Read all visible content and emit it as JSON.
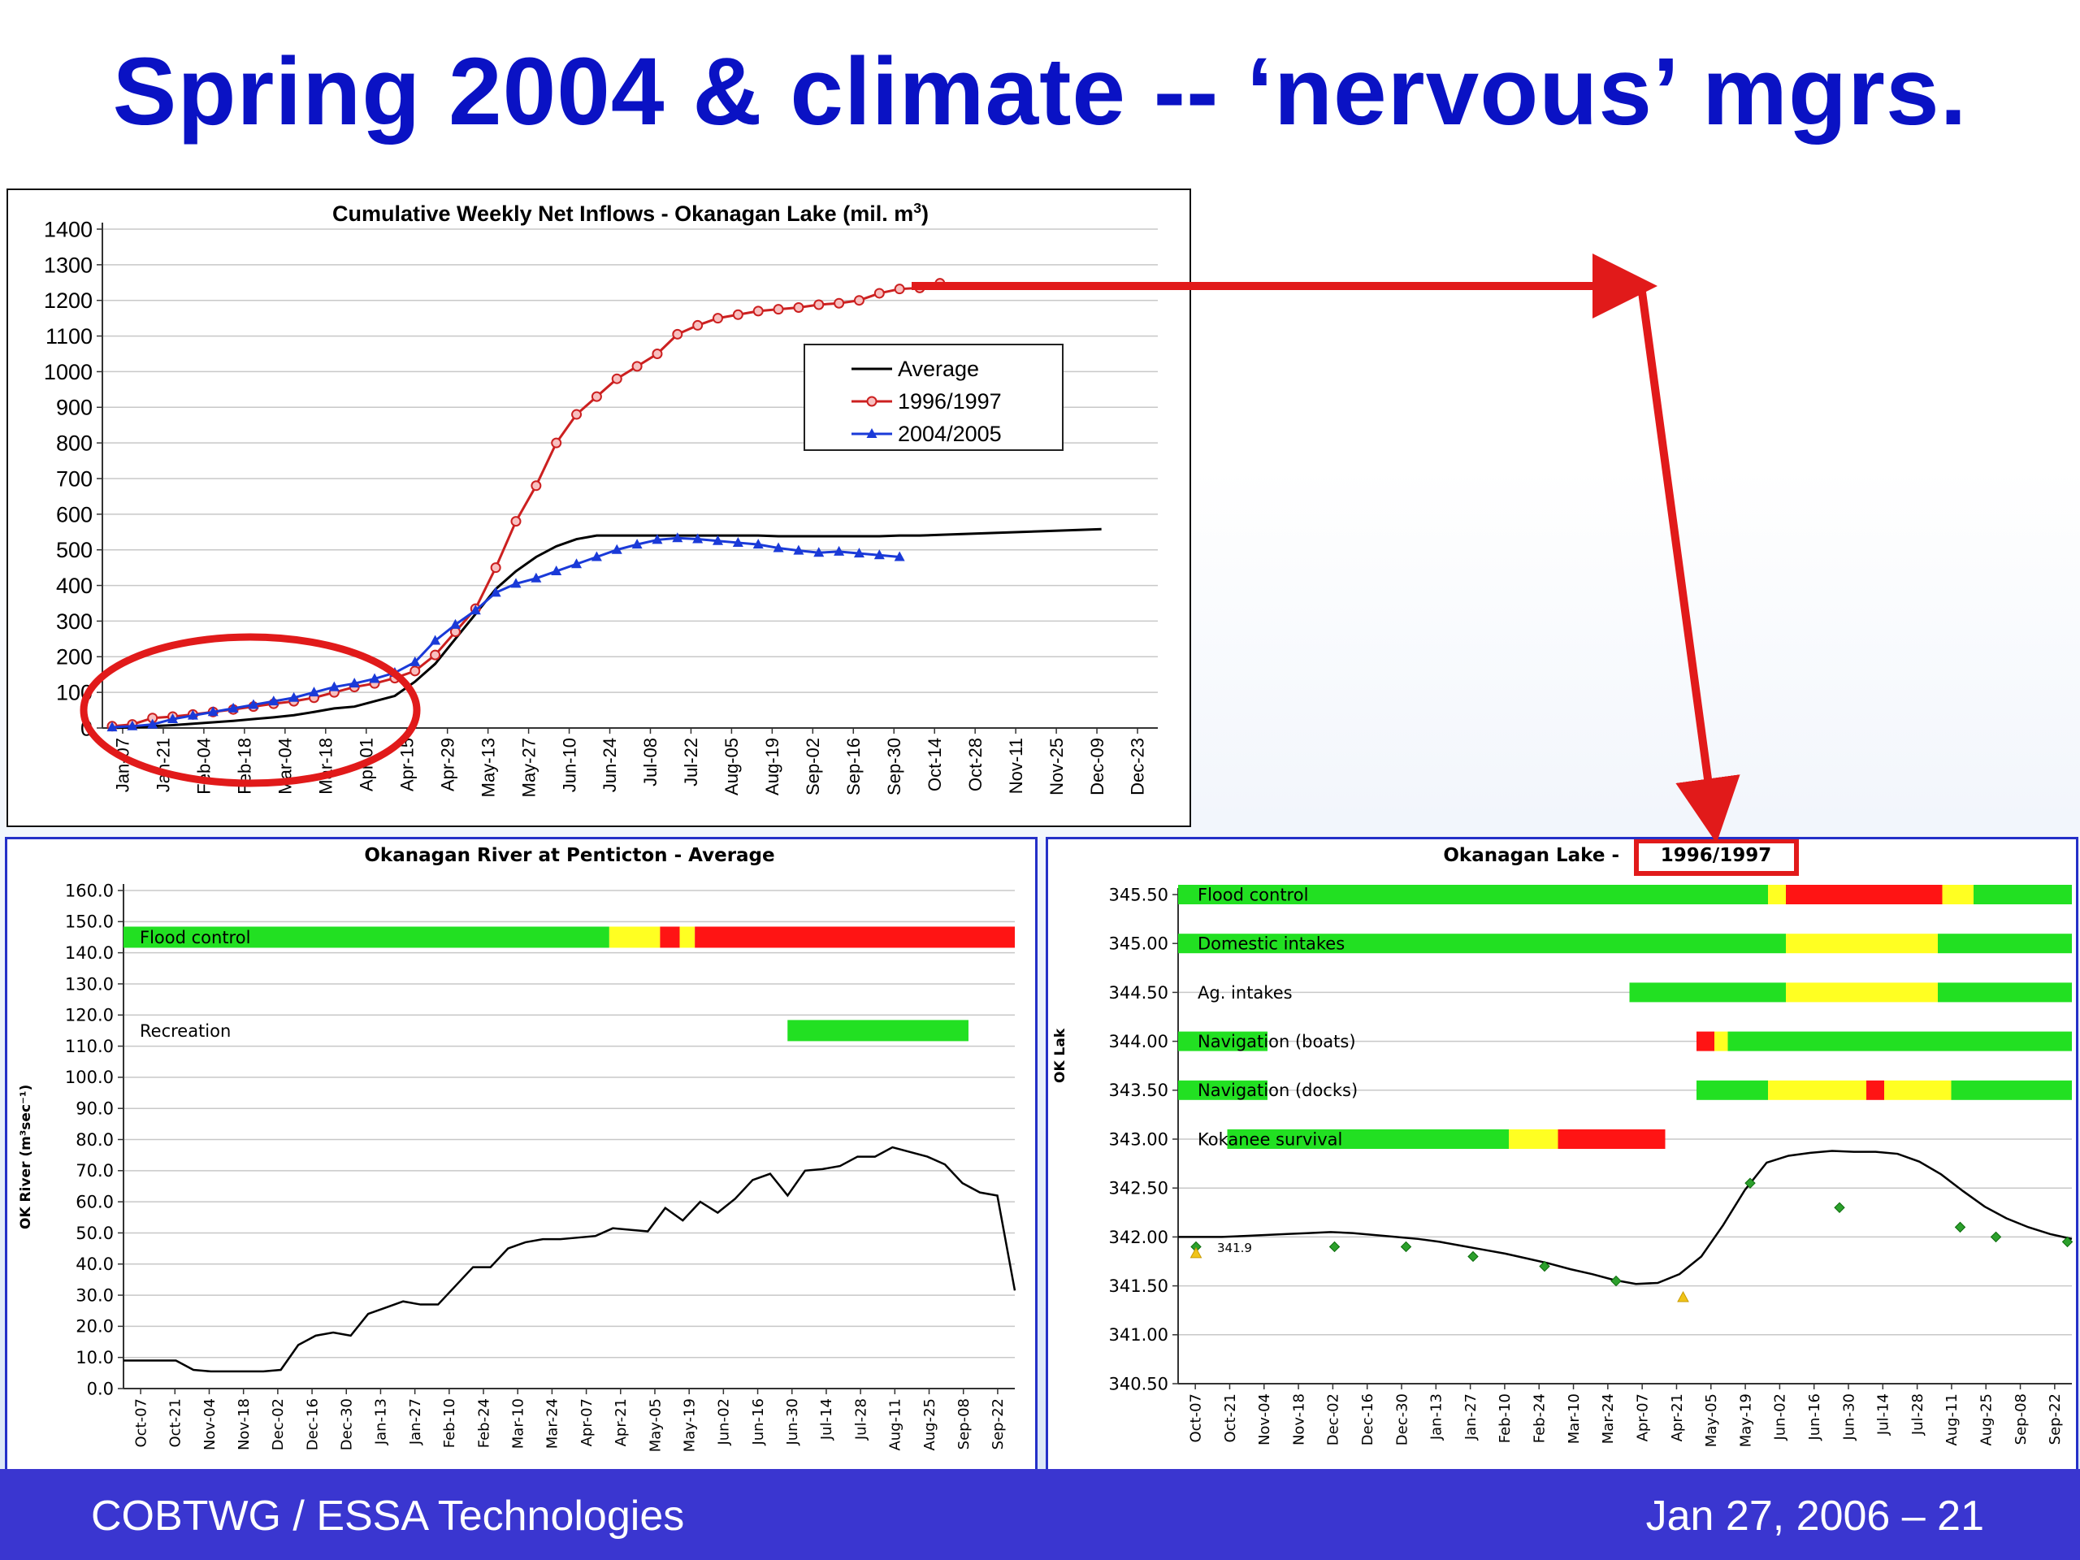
{
  "slide": {
    "title": "Spring 2004 & climate -- ‘nervous’ mgrs.",
    "footer_left": "COBTWG / ESSA Technologies",
    "footer_right": "Jan 27, 2006 – 21",
    "colors": {
      "title": "#0a12c4",
      "footer_bg": "#3a36d0",
      "highlight": "#e11a1a"
    }
  },
  "chart_data": [
    {
      "type": "line",
      "title": "Cumulative Weekly Net Inflows - Okanagan Lake (mil. m",
      "title_sup": "3",
      "title_close": ")",
      "xlabel": "",
      "ylabel": "",
      "ylim": [
        0,
        1400
      ],
      "yticks": [
        "0",
        "100",
        "200",
        "300",
        "400",
        "500",
        "600",
        "700",
        "800",
        "900",
        "1000",
        "1100",
        "1200",
        "1300",
        "1400"
      ],
      "x_labels": [
        "Jan-07",
        "Jan-21",
        "Feb-04",
        "Feb-18",
        "Mar-04",
        "Mar-18",
        "Apr-01",
        "Apr-15",
        "Apr-29",
        "May-13",
        "May-27",
        "Jun-10",
        "Jun-24",
        "Jul-08",
        "Jul-22",
        "Aug-05",
        "Aug-19",
        "Sep-02",
        "Sep-16",
        "Sep-30",
        "Oct-14",
        "Oct-28",
        "Nov-11",
        "Nov-25",
        "Dec-09",
        "Dec-23"
      ],
      "legend": [
        "Average",
        "1996/1997",
        "2004/2005"
      ],
      "legend_position": "right",
      "grid": true,
      "series": [
        {
          "name": "Average",
          "color": "#000000",
          "marker": "none",
          "values": [
            0,
            2,
            5,
            8,
            12,
            16,
            20,
            25,
            30,
            36,
            45,
            55,
            60,
            75,
            90,
            130,
            180,
            250,
            320,
            390,
            440,
            480,
            510,
            530,
            540,
            540,
            540,
            540,
            540,
            540,
            540,
            540,
            540,
            538,
            538,
            538,
            538,
            538,
            538,
            540,
            540,
            542,
            544,
            546,
            548,
            550,
            552,
            554,
            556,
            558
          ]
        },
        {
          "name": "1996/1997",
          "color": "#cc2020",
          "marker": "circle",
          "values": [
            5,
            10,
            28,
            32,
            38,
            45,
            52,
            60,
            68,
            75,
            85,
            100,
            115,
            125,
            140,
            160,
            205,
            270,
            335,
            450,
            580,
            680,
            800,
            880,
            930,
            980,
            1015,
            1050,
            1105,
            1130,
            1150,
            1160,
            1170,
            1175,
            1180,
            1188,
            1192,
            1200,
            1220,
            1232,
            1235,
            1248
          ]
        },
        {
          "name": "2004/2005",
          "color": "#1a3ad8",
          "marker": "triangle",
          "values": [
            2,
            5,
            10,
            25,
            35,
            45,
            55,
            65,
            75,
            85,
            100,
            115,
            125,
            138,
            155,
            185,
            245,
            290,
            330,
            380,
            405,
            420,
            440,
            460,
            480,
            500,
            515,
            528,
            533,
            530,
            525,
            520,
            515,
            505,
            498,
            492,
            495,
            490,
            485,
            480
          ]
        }
      ],
      "annotation": "red ellipse around Jan–Apr period"
    },
    {
      "type": "line",
      "title": "Okanagan River at Penticton - Average",
      "xlabel": "",
      "ylabel": "OK River (m³sec⁻¹)",
      "ylim": [
        0,
        160
      ],
      "yticks": [
        "0.0",
        "10.0",
        "20.0",
        "30.0",
        "40.0",
        "50.0",
        "60.0",
        "70.0",
        "80.0",
        "90.0",
        "100.0",
        "110.0",
        "120.0",
        "130.0",
        "140.0",
        "150.0",
        "160.0"
      ],
      "x_labels": [
        "Oct-07",
        "Oct-21",
        "Nov-04",
        "Nov-18",
        "Dec-02",
        "Dec-16",
        "Dec-30",
        "Jan-13",
        "Jan-27",
        "Feb-10",
        "Feb-24",
        "Mar-10",
        "Mar-24",
        "Apr-07",
        "Apr-21",
        "May-05",
        "May-19",
        "Jun-02",
        "Jun-16",
        "Jun-30",
        "Jul-14",
        "Jul-28",
        "Aug-11",
        "Aug-25",
        "Sep-08",
        "Sep-22"
      ],
      "grid": true,
      "series": [
        {
          "name": "",
          "color": "#000000",
          "values": [
            9,
            9,
            9,
            9,
            6,
            5.5,
            5.5,
            5.5,
            5.5,
            6,
            14,
            17,
            18,
            17,
            24,
            26,
            28,
            27,
            27,
            33,
            39,
            39,
            45,
            47,
            48,
            48,
            48.5,
            49,
            51.5,
            51,
            50.5,
            58,
            54,
            60,
            56.5,
            61,
            67,
            69,
            62,
            70,
            70.5,
            71.5,
            74.5,
            74.5,
            77.5,
            76,
            74.5,
            72,
            66,
            63,
            62,
            31.5
          ]
        }
      ],
      "bands": [
        {
          "label": "Flood control",
          "y_value": 145,
          "segments": [
            {
              "from": 0.0,
              "to": 0.545,
              "color": "green"
            },
            {
              "from": 0.545,
              "to": 0.602,
              "color": "yellow"
            },
            {
              "from": 0.602,
              "to": 0.624,
              "color": "red"
            },
            {
              "from": 0.624,
              "to": 0.641,
              "color": "yellow"
            },
            {
              "from": 0.641,
              "to": 1.0,
              "color": "red"
            }
          ]
        },
        {
          "label": "Recreation",
          "y_value": 115,
          "segments": [
            {
              "from": 0.0,
              "to": 0.745,
              "color": "none"
            },
            {
              "from": 0.745,
              "to": 0.948,
              "color": "green"
            }
          ]
        }
      ]
    },
    {
      "type": "line",
      "title": "Okanagan Lake - ",
      "title_boxed": "1996/1997",
      "xlabel": "",
      "ylabel": "OK Lak",
      "ylim": [
        340.5,
        345.5
      ],
      "yticks": [
        "340.50",
        "341.00",
        "341.50",
        "342.00",
        "342.50",
        "343.00",
        "343.50",
        "344.00",
        "344.50",
        "345.00",
        "345.50"
      ],
      "x_labels": [
        "Oct-07",
        "Oct-21",
        "Nov-04",
        "Nov-18",
        "Dec-02",
        "Dec-16",
        "Dec-30",
        "Jan-13",
        "Jan-27",
        "Feb-10",
        "Feb-24",
        "Mar-10",
        "Mar-24",
        "Apr-07",
        "Apr-21",
        "May-05",
        "May-19",
        "Jun-02",
        "Jun-16",
        "Jun-30",
        "Jul-14",
        "Jul-28",
        "Aug-11",
        "Aug-25",
        "Sep-08",
        "Sep-22"
      ],
      "grid": true,
      "point_label": "341.9",
      "series": [
        {
          "name": "",
          "color": "#000000",
          "values": [
            342.0,
            342.0,
            342.0,
            342.01,
            342.02,
            342.03,
            342.04,
            342.05,
            342.04,
            342.02,
            342.0,
            341.98,
            341.95,
            341.91,
            341.87,
            341.83,
            341.78,
            341.73,
            341.67,
            341.62,
            341.56,
            341.52,
            341.53,
            341.62,
            341.8,
            342.12,
            342.48,
            342.76,
            342.83,
            342.86,
            342.88,
            342.87,
            342.87,
            342.85,
            342.77,
            342.64,
            342.47,
            342.31,
            342.19,
            342.1,
            342.03,
            341.98
          ]
        },
        {
          "name": "",
          "color": "#2ca02c",
          "marker": "diamond",
          "points": [
            [
              0.02,
              341.9
            ],
            [
              0.175,
              341.9
            ],
            [
              0.255,
              341.9
            ],
            [
              0.33,
              341.8
            ],
            [
              0.41,
              341.7
            ],
            [
              0.49,
              341.55
            ],
            [
              0.64,
              342.55
            ],
            [
              0.74,
              342.3
            ],
            [
              0.875,
              342.1
            ],
            [
              0.915,
              342.0
            ],
            [
              0.995,
              341.95
            ]
          ]
        },
        {
          "name": "",
          "color": "#f0c419",
          "marker": "triangle",
          "points": [
            [
              0.02,
              341.83
            ],
            [
              0.565,
              341.38
            ]
          ]
        }
      ],
      "bands": [
        {
          "label": "Flood control",
          "y_value": 345.5,
          "segments": [
            {
              "from": 0.0,
              "to": 0.66,
              "color": "green"
            },
            {
              "from": 0.66,
              "to": 0.68,
              "color": "yellow"
            },
            {
              "from": 0.68,
              "to": 0.855,
              "color": "red"
            },
            {
              "from": 0.855,
              "to": 0.89,
              "color": "yellow"
            },
            {
              "from": 0.89,
              "to": 1.0,
              "color": "green"
            }
          ]
        },
        {
          "label": "Domestic intakes",
          "y_value": 345.0,
          "segments": [
            {
              "from": 0.0,
              "to": 0.68,
              "color": "green"
            },
            {
              "from": 0.68,
              "to": 0.85,
              "color": "yellow"
            },
            {
              "from": 0.85,
              "to": 1.0,
              "color": "green"
            }
          ]
        },
        {
          "label": "Ag. intakes",
          "y_value": 344.5,
          "segments": [
            {
              "from": 0.0,
              "to": 0.505,
              "color": "none"
            },
            {
              "from": 0.505,
              "to": 0.68,
              "color": "green"
            },
            {
              "from": 0.68,
              "to": 0.85,
              "color": "yellow"
            },
            {
              "from": 0.85,
              "to": 1.0,
              "color": "green"
            }
          ]
        },
        {
          "label": "Navigation (boats)",
          "y_value": 344.0,
          "segments": [
            {
              "from": 0.0,
              "to": 0.1,
              "color": "green"
            },
            {
              "from": 0.1,
              "to": 0.58,
              "color": "none"
            },
            {
              "from": 0.58,
              "to": 0.6,
              "color": "red"
            },
            {
              "from": 0.6,
              "to": 0.615,
              "color": "yellow"
            },
            {
              "from": 0.615,
              "to": 1.0,
              "color": "green"
            }
          ]
        },
        {
          "label": "Navigation (docks)",
          "y_value": 343.5,
          "segments": [
            {
              "from": 0.0,
              "to": 0.1,
              "color": "green"
            },
            {
              "from": 0.1,
              "to": 0.58,
              "color": "none"
            },
            {
              "from": 0.58,
              "to": 0.66,
              "color": "green"
            },
            {
              "from": 0.66,
              "to": 0.77,
              "color": "yellow"
            },
            {
              "from": 0.77,
              "to": 0.79,
              "color": "red"
            },
            {
              "from": 0.79,
              "to": 0.865,
              "color": "yellow"
            },
            {
              "from": 0.865,
              "to": 1.0,
              "color": "green"
            }
          ]
        },
        {
          "label": "Kokanee survival",
          "y_value": 343.0,
          "segments": [
            {
              "from": 0.0,
              "to": 0.055,
              "color": "none"
            },
            {
              "from": 0.055,
              "to": 0.37,
              "color": "green"
            },
            {
              "from": 0.37,
              "to": 0.425,
              "color": "yellow"
            },
            {
              "from": 0.425,
              "to": 0.545,
              "color": "red"
            }
          ]
        }
      ]
    }
  ]
}
